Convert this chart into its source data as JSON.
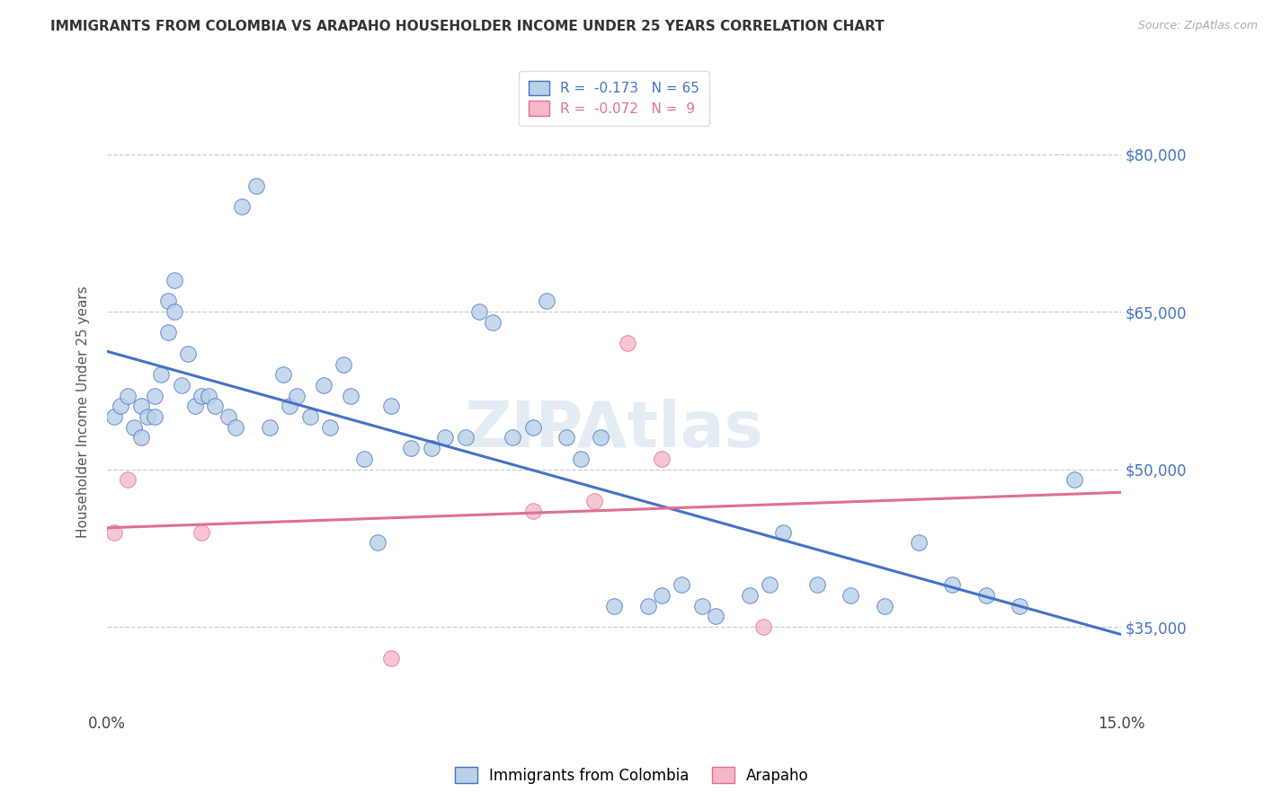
{
  "title": "IMMIGRANTS FROM COLOMBIA VS ARAPAHO HOUSEHOLDER INCOME UNDER 25 YEARS CORRELATION CHART",
  "source": "Source: ZipAtlas.com",
  "ylabel": "Householder Income Under 25 years",
  "x_min": 0.0,
  "x_max": 0.15,
  "y_min": 27000,
  "y_max": 84000,
  "y_ticks": [
    35000,
    50000,
    65000,
    80000
  ],
  "x_ticks": [
    0.0,
    0.05,
    0.1,
    0.15
  ],
  "x_tick_labels": [
    "0.0%",
    "",
    "",
    "15.0%"
  ],
  "blue_R": -0.173,
  "blue_N": 65,
  "pink_R": -0.072,
  "pink_N": 9,
  "blue_color": "#b8d0e8",
  "pink_color": "#f5b8c8",
  "blue_line_color": "#4472c4",
  "pink_line_color": "#e07090",
  "legend_label_blue": "Immigrants from Colombia",
  "legend_label_pink": "Arapaho",
  "watermark": "ZIPAtlas",
  "blue_x": [
    0.001,
    0.002,
    0.003,
    0.004,
    0.005,
    0.005,
    0.006,
    0.007,
    0.007,
    0.008,
    0.009,
    0.009,
    0.01,
    0.01,
    0.011,
    0.012,
    0.013,
    0.014,
    0.015,
    0.016,
    0.018,
    0.019,
    0.02,
    0.022,
    0.024,
    0.026,
    0.027,
    0.028,
    0.03,
    0.032,
    0.033,
    0.035,
    0.036,
    0.038,
    0.04,
    0.042,
    0.045,
    0.048,
    0.05,
    0.053,
    0.055,
    0.057,
    0.06,
    0.063,
    0.065,
    0.068,
    0.07,
    0.073,
    0.075,
    0.08,
    0.082,
    0.085,
    0.088,
    0.09,
    0.095,
    0.098,
    0.1,
    0.105,
    0.11,
    0.115,
    0.12,
    0.125,
    0.13,
    0.135,
    0.143
  ],
  "blue_y": [
    55000,
    56000,
    57000,
    54000,
    53000,
    56000,
    55000,
    57000,
    55000,
    59000,
    63000,
    66000,
    65000,
    68000,
    58000,
    61000,
    56000,
    57000,
    57000,
    56000,
    55000,
    54000,
    75000,
    77000,
    54000,
    59000,
    56000,
    57000,
    55000,
    58000,
    54000,
    60000,
    57000,
    51000,
    43000,
    56000,
    52000,
    52000,
    53000,
    53000,
    65000,
    64000,
    53000,
    54000,
    66000,
    53000,
    51000,
    53000,
    37000,
    37000,
    38000,
    39000,
    37000,
    36000,
    38000,
    39000,
    44000,
    39000,
    38000,
    37000,
    43000,
    39000,
    38000,
    37000,
    49000
  ],
  "pink_x": [
    0.001,
    0.003,
    0.014,
    0.042,
    0.063,
    0.072,
    0.077,
    0.082,
    0.097
  ],
  "pink_y": [
    44000,
    49000,
    44000,
    32000,
    46000,
    47000,
    62000,
    51000,
    35000
  ]
}
